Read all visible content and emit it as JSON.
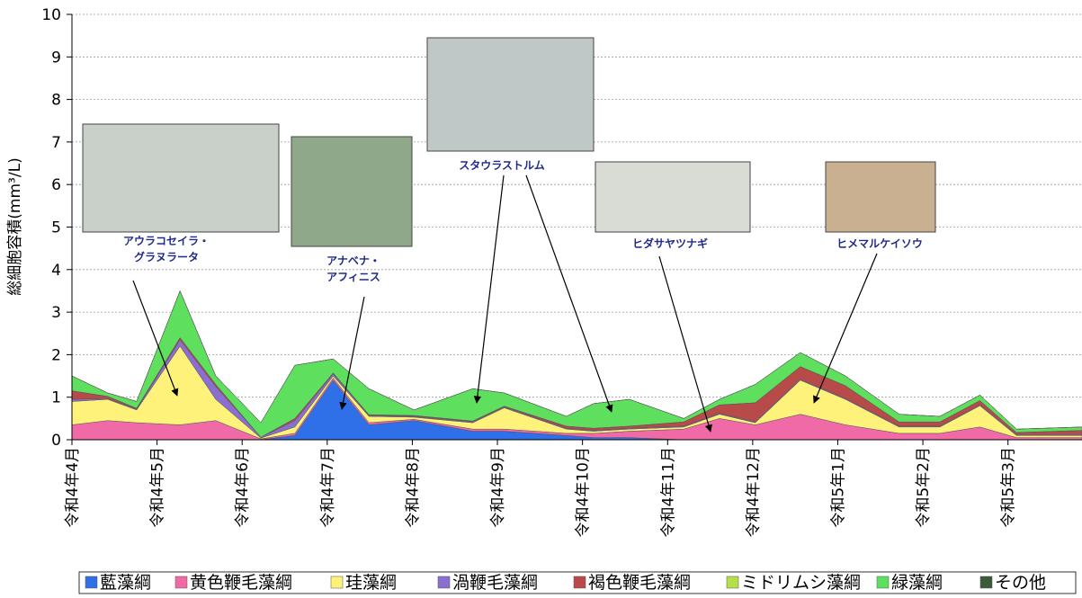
{
  "chart_data": {
    "type": "stacked_area",
    "y_label": "総細胞容積(mm³/L)",
    "x": [
      0,
      0.42,
      0.76,
      1.27,
      1.69,
      2.22,
      2.62,
      3.07,
      3.49,
      4.02,
      4.71,
      5.08,
      5.81,
      6.13,
      6.55,
      7.19,
      7.61,
      8.03,
      8.56,
      9.09,
      9.72,
      10.2,
      10.67,
      11.1,
      11.87
    ],
    "xlim": [
      0,
      11.87
    ],
    "xticks": [
      {
        "value": 0,
        "label": "令和4年4月"
      },
      {
        "value": 1,
        "label": "令和4年5月"
      },
      {
        "value": 2,
        "label": "令和4年6月"
      },
      {
        "value": 3,
        "label": "令和4年7月"
      },
      {
        "value": 4,
        "label": "令和4年8月"
      },
      {
        "value": 5,
        "label": "令和4年9月"
      },
      {
        "value": 6,
        "label": "令和4年10月"
      },
      {
        "value": 7,
        "label": "令和4年11月"
      },
      {
        "value": 8,
        "label": "令和4年12月"
      },
      {
        "value": 9,
        "label": "令和5年1月"
      },
      {
        "value": 10,
        "label": "令和5年2月"
      },
      {
        "value": 11,
        "label": "令和5年3月"
      }
    ],
    "ylim": [
      0,
      10
    ],
    "yticks": [
      0,
      1,
      2,
      3,
      4,
      5,
      6,
      7,
      8,
      9,
      10
    ],
    "grid": true,
    "legend": "bottom",
    "series": [
      {
        "name": "藍藻綱",
        "color": "#2f6fe8",
        "values": [
          0,
          0,
          0,
          0,
          0,
          0,
          0.1,
          1.4,
          0.35,
          0.45,
          0.2,
          0.2,
          0.1,
          0.05,
          0.05,
          0,
          0,
          0,
          0,
          0,
          0,
          0,
          0,
          0,
          0
        ]
      },
      {
        "name": "黄色鞭毛藻綱",
        "color": "#f06aa8",
        "values": [
          0.35,
          0.45,
          0.4,
          0.35,
          0.45,
          0.02,
          0.05,
          0.05,
          0.05,
          0.03,
          0.05,
          0.05,
          0.05,
          0.1,
          0.15,
          0.25,
          0.5,
          0.35,
          0.6,
          0.35,
          0.15,
          0.15,
          0.3,
          0.05,
          0.05
        ]
      },
      {
        "name": "珪藻綱",
        "color": "#fff27a",
        "values": [
          0.55,
          0.5,
          0.3,
          1.85,
          0.5,
          0.02,
          0.15,
          0.05,
          0.15,
          0.05,
          0.15,
          0.5,
          0.1,
          0.05,
          0.05,
          0.05,
          0.1,
          0.05,
          0.8,
          0.6,
          0.15,
          0.15,
          0.5,
          0.05,
          0.05
        ]
      },
      {
        "name": "渦鞭毛藻綱",
        "color": "#8a6fd0",
        "values": [
          0.05,
          0.02,
          0.02,
          0.15,
          0.3,
          0.02,
          0.15,
          0.05,
          0.02,
          0.02,
          0.02,
          0.02,
          0.02,
          0.02,
          0.02,
          0.02,
          0.02,
          0.02,
          0.02,
          0.02,
          0.02,
          0.02,
          0.02,
          0.02,
          0.02
        ]
      },
      {
        "name": "褐色鞭毛藻綱",
        "color": "#b84a4a",
        "values": [
          0.2,
          0.05,
          0.02,
          0.05,
          0.05,
          0,
          0.05,
          0.02,
          0.02,
          0.02,
          0.02,
          0.02,
          0.05,
          0.05,
          0.05,
          0.1,
          0.2,
          0.45,
          0.3,
          0.3,
          0.1,
          0.1,
          0.1,
          0.05,
          0.1
        ]
      },
      {
        "name": "ミドリムシ藻綱",
        "color": "#b6e04a",
        "values": [
          0,
          0,
          0,
          0,
          0,
          0,
          0,
          0,
          0,
          0,
          0,
          0,
          0,
          0,
          0,
          0,
          0,
          0,
          0,
          0,
          0,
          0,
          0,
          0,
          0
        ]
      },
      {
        "name": "緑藻綱",
        "color": "#5ee05e",
        "values": [
          0.35,
          0.08,
          0.16,
          1.1,
          0.2,
          0.34,
          1.25,
          0.33,
          0.61,
          0.13,
          0.76,
          0.31,
          0.23,
          0.58,
          0.63,
          0.08,
          0.13,
          0.43,
          0.33,
          0.23,
          0.18,
          0.13,
          0.13,
          0.08,
          0.08
        ]
      },
      {
        "name": "その他",
        "color": "#3a5a3a",
        "values": [
          0,
          0,
          0,
          0,
          0,
          0,
          0,
          0,
          0,
          0,
          0,
          0,
          0,
          0,
          0,
          0,
          0,
          0,
          0,
          0,
          0,
          0,
          0,
          0,
          0
        ]
      }
    ],
    "annotations": [
      [
        "アウラコセイラ・",
        "グラヌラータ"
      ],
      [
        "アナベナ・",
        "アフィニス"
      ],
      [
        "スタウラストルム"
      ],
      [
        "ヒダサヤツナギ"
      ],
      [
        "ヒメマルケイソウ"
      ]
    ]
  }
}
